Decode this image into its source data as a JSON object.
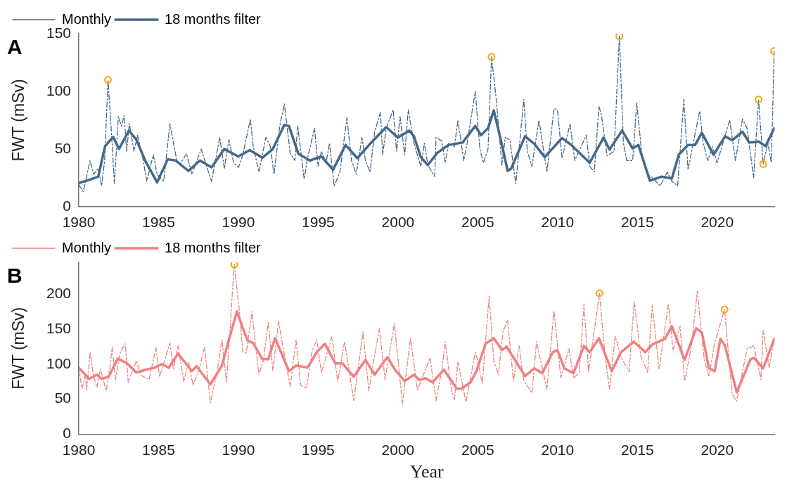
{
  "chart_data": [
    {
      "type": "line",
      "title": "A",
      "ylabel": "FWT (mSv)",
      "xlim": [
        1980,
        2023.6
      ],
      "xticks": [
        1980,
        1985,
        1990,
        1995,
        2000,
        2005,
        2010,
        2015,
        2020
      ],
      "ylim": [
        0,
        150
      ],
      "yticks": [
        0,
        50,
        100,
        150
      ],
      "grid": false,
      "legend": "top left",
      "series": [
        {
          "name": "Monthly",
          "color": "#44688a",
          "line_style": "dashed",
          "marker": "none",
          "x": [
            1980.0,
            1980.28,
            1980.71,
            1980.93,
            1981.22,
            1981.43,
            1981.62,
            1981.83,
            1982.09,
            1982.23,
            1982.48,
            1982.67,
            1982.84,
            1983.0,
            1983.17,
            1983.46,
            1983.68,
            1984.04,
            1984.26,
            1984.67,
            1984.91,
            1985.32,
            1985.71,
            1986.14,
            1986.36,
            1986.75,
            1987.09,
            1987.67,
            1987.96,
            1988.32,
            1988.83,
            1989.12,
            1989.41,
            1989.7,
            1990.01,
            1990.28,
            1990.75,
            1990.93,
            1991.29,
            1991.72,
            1992.01,
            1992.23,
            1992.59,
            1992.88,
            1993.25,
            1993.54,
            1993.72,
            1994.12,
            1994.33,
            1994.77,
            1994.99,
            1995.2,
            1995.49,
            1995.71,
            1996.0,
            1996.36,
            1996.8,
            1997.09,
            1997.38,
            1997.74,
            1997.96,
            1998.25,
            1998.54,
            1998.9,
            1999.04,
            1999.26,
            1999.7,
            1999.91,
            2000.13,
            2000.42,
            2000.64,
            2001.0,
            2001.43,
            2001.65,
            2001.87,
            2002.3,
            2002.38,
            2002.74,
            2002.96,
            2003.17,
            2003.54,
            2003.75,
            2004.12,
            2004.33,
            2004.84,
            2005.13,
            2005.35,
            2005.64,
            2005.86,
            2006.14,
            2006.51,
            2006.72,
            2007.01,
            2007.38,
            2007.88,
            2008.1,
            2008.39,
            2008.83,
            2009.33,
            2009.77,
            2009.99,
            2010.28,
            2010.78,
            2011.07,
            2011.8,
            2012.01,
            2012.3,
            2012.59,
            2012.74,
            2013.1,
            2013.54,
            2013.87,
            2014.12,
            2014.33,
            2014.7,
            2014.96,
            2015.28,
            2015.64,
            2015.93,
            2016.43,
            2016.87,
            2017.16,
            2017.52,
            2017.91,
            2018.17,
            2018.9,
            2019.12,
            2019.41,
            2019.7,
            2019.99,
            2020.78,
            2021.14,
            2021.58,
            2021.87,
            2022.28,
            2022.59,
            2022.88,
            2023.17,
            2023.39,
            2023.57
          ],
          "values": [
            19,
            13,
            40,
            28,
            33,
            18,
            40,
            110,
            55,
            20,
            78,
            70,
            79,
            48,
            72,
            48,
            62,
            40,
            22,
            45,
            28,
            22,
            72,
            40,
            37,
            46,
            28,
            50,
            37,
            22,
            60,
            33,
            58,
            38,
            34,
            45,
            76,
            52,
            30,
            60,
            52,
            28,
            70,
            89,
            46,
            40,
            70,
            24,
            42,
            68,
            35,
            48,
            38,
            55,
            18,
            30,
            77,
            40,
            28,
            60,
            40,
            30,
            65,
            82,
            45,
            68,
            84,
            48,
            78,
            45,
            84,
            55,
            35,
            55,
            36,
            26,
            60,
            57,
            38,
            55,
            52,
            75,
            40,
            55,
            100,
            50,
            38,
            50,
            130,
            95,
            36,
            60,
            58,
            20,
            93,
            48,
            35,
            75,
            30,
            85,
            84,
            42,
            72,
            40,
            62,
            35,
            30,
            87,
            80,
            44,
            48,
            148,
            55,
            40,
            40,
            90,
            45,
            28,
            25,
            18,
            30,
            22,
            18,
            93,
            32,
            83,
            55,
            40,
            52,
            38,
            75,
            40,
            76,
            68,
            25,
            93,
            37,
            55,
            38,
            135
          ]
        },
        {
          "name": "18 months filter",
          "color": "#44688a",
          "line_style": "solid",
          "marker": "none",
          "x": [
            1980.0,
            1980.71,
            1981.22,
            1981.65,
            1982.16,
            1982.52,
            1983.14,
            1983.61,
            1984.19,
            1984.91,
            1985.57,
            1986.07,
            1986.87,
            1987.59,
            1988.32,
            1989.12,
            1989.99,
            1990.71,
            1991.51,
            1992.16,
            1992.88,
            1993.17,
            1993.75,
            1994.48,
            1995.2,
            1995.93,
            1996.72,
            1997.45,
            1998.25,
            1999.26,
            1999.99,
            2000.71,
            2001.0,
            2001.43,
            2001.87,
            2002.45,
            2003.17,
            2004.04,
            2004.84,
            2005.2,
            2005.64,
            2006.0,
            2006.43,
            2006.87,
            2007.09,
            2007.96,
            2008.54,
            2009.19,
            2010.28,
            2010.86,
            2012.01,
            2012.88,
            2013.25,
            2014.04,
            2014.7,
            2015.06,
            2015.78,
            2016.51,
            2017.16,
            2017.59,
            2018.17,
            2018.61,
            2019.04,
            2019.77,
            2020.49,
            2020.93,
            2021.58,
            2022.01,
            2022.59,
            2023.03,
            2023.57
          ],
          "values": [
            20.5,
            23.5,
            26,
            52.5,
            60.5,
            50,
            66,
            58,
            39,
            21,
            41,
            40,
            31,
            40,
            34,
            50,
            43.5,
            49,
            42.5,
            50,
            71,
            70,
            46,
            40,
            43.5,
            32,
            53.5,
            42,
            54.5,
            69,
            60,
            66,
            61,
            43,
            36,
            46.5,
            53.5,
            55.5,
            70,
            62,
            68,
            83.5,
            58.5,
            31,
            33,
            61,
            54.5,
            43,
            59.5,
            53.5,
            38,
            60,
            49.5,
            66,
            50.5,
            53.5,
            22.5,
            26,
            24.5,
            45,
            53.5,
            53.5,
            64,
            45,
            61,
            57.5,
            65,
            55.5,
            56.5,
            52.5,
            68
          ]
        },
        {
          "type": "scatter",
          "color": "#f0a800",
          "marker": "circle",
          "x": [
            1981.83,
            2005.86,
            2013.87,
            2022.59,
            2022.88,
            2023.57
          ],
          "values": [
            110,
            130,
            148,
            93,
            37,
            135
          ]
        }
      ]
    },
    {
      "type": "line",
      "title": "B",
      "xlabel": "Year",
      "ylabel": "FWT (mSv)",
      "xlim": [
        1980,
        2023.6
      ],
      "xticks": [
        1980,
        1985,
        1990,
        1995,
        2000,
        2005,
        2010,
        2015,
        2020
      ],
      "ylim": [
        0,
        245
      ],
      "yticks": [
        0,
        50,
        100,
        150,
        200
      ],
      "grid": false,
      "legend": "top left",
      "series": [
        {
          "name": "Monthly",
          "color": "#f08080",
          "line_style": "dashed",
          "marker": "none",
          "x": [
            1980.0,
            1980.2,
            1980.42,
            1980.49,
            1980.71,
            1980.93,
            1981.14,
            1981.36,
            1981.72,
            1981.94,
            1982.09,
            1982.3,
            1982.59,
            1982.91,
            1983.1,
            1983.61,
            1983.9,
            1984.41,
            1984.84,
            1985.06,
            1985.71,
            1985.93,
            1986.22,
            1986.58,
            1986.87,
            1987.16,
            1987.52,
            1987.88,
            1988.25,
            1988.68,
            1988.97,
            1989.26,
            1989.74,
            1990.06,
            1990.28,
            1990.49,
            1990.86,
            1991.0,
            1991.29,
            1991.58,
            1991.87,
            1992.16,
            1992.52,
            1992.81,
            1993.25,
            1993.61,
            1993.9,
            1994.26,
            1994.62,
            1994.91,
            1995.2,
            1995.86,
            1996.22,
            1996.65,
            1997.23,
            1997.81,
            1998.17,
            1998.83,
            1999.19,
            1999.77,
            2000.28,
            2000.78,
            2001.22,
            2001.58,
            2002.01,
            2002.38,
            2002.74,
            2002.96,
            2003.32,
            2003.54,
            2003.75,
            2004.26,
            2004.84,
            2004.99,
            2005.28,
            2005.71,
            2006.0,
            2006.29,
            2006.58,
            2006.87,
            2007.23,
            2007.59,
            2007.88,
            2008.39,
            2008.68,
            2009.33,
            2009.77,
            2010.2,
            2010.71,
            2011.0,
            2011.36,
            2011.65,
            2011.94,
            2012.62,
            2012.96,
            2013.25,
            2013.61,
            2013.97,
            2014.48,
            2014.8,
            2015.2,
            2015.64,
            2015.93,
            2016.36,
            2016.94,
            2017.23,
            2017.67,
            2017.96,
            2018.39,
            2018.75,
            2019.19,
            2019.48,
            2019.84,
            2020.46,
            2020.93,
            2021.22,
            2021.87,
            2022.3,
            2022.74,
            2022.88,
            2023.25,
            2023.57
          ],
          "values": [
            95,
            65,
            85,
            62,
            117,
            82,
            67,
            93,
            62,
            93,
            124,
            78,
            116,
            129,
            74,
            105,
            84,
            78,
            124,
            82,
            130,
            93,
            127,
            75,
            103,
            70,
            91,
            124,
            45,
            91,
            135,
            74,
            242,
            176,
            117,
            116,
            175,
            142,
            85,
            107,
            160,
            91,
            161,
            122,
            68,
            135,
            70,
            65,
            119,
            135,
            88,
            139,
            75,
            132,
            48,
            146,
            62,
            151,
            78,
            158,
            43,
            137,
            63,
            84,
            109,
            48,
            91,
            132,
            67,
            49,
            104,
            46,
            117,
            105,
            72,
            197,
            105,
            85,
            146,
            163,
            76,
            126,
            76,
            59,
            132,
            64,
            176,
            81,
            122,
            80,
            88,
            186,
            89,
            201,
            114,
            64,
            140,
            110,
            89,
            190,
            112,
            88,
            184,
            93,
            186,
            120,
            154,
            76,
            126,
            204,
            106,
            83,
            130,
            178,
            58,
            47,
            122,
            126,
            78,
            148,
            95,
            136
          ]
        },
        {
          "name": "18 months filter",
          "color": "#f08080",
          "line_style": "solid",
          "marker": "none",
          "x": [
            1980.0,
            1980.64,
            1981.14,
            1981.43,
            1981.87,
            1982.45,
            1983.03,
            1983.61,
            1984.19,
            1984.77,
            1985.2,
            1985.64,
            1986.22,
            1987.09,
            1987.38,
            1988.25,
            1988.97,
            1989.41,
            1989.91,
            1990.28,
            1990.57,
            1990.93,
            1991.51,
            1991.87,
            1992.3,
            1993.17,
            1993.61,
            1994.33,
            1994.91,
            1995.42,
            1996.07,
            1996.51,
            1997.23,
            1997.96,
            1998.54,
            1999.33,
            1999.84,
            2000.42,
            2001.0,
            2001.36,
            2001.72,
            2002.16,
            2002.88,
            2003.68,
            2003.97,
            2004.55,
            2004.91,
            2005.49,
            2006.0,
            2006.51,
            2006.8,
            2007.96,
            2008.54,
            2009.04,
            2009.7,
            2009.99,
            2010.42,
            2011.0,
            2011.65,
            2012.01,
            2012.59,
            2013.39,
            2013.97,
            2014.77,
            2015.49,
            2015.93,
            2016.72,
            2017.16,
            2017.96,
            2018.68,
            2019.04,
            2019.48,
            2019.84,
            2020.2,
            2020.49,
            2021.22,
            2022.09,
            2022.3,
            2022.88,
            2023.57
          ],
          "values": [
            95,
            79,
            85,
            79,
            82,
            108,
            101,
            88,
            92,
            95,
            100,
            95,
            115,
            90,
            97,
            71,
            98,
            135,
            175,
            151,
            134,
            130,
            107,
            107,
            137,
            90,
            98,
            95,
            117,
            129,
            101,
            101,
            82,
            106,
            85,
            110,
            91,
            76,
            85,
            77,
            80,
            74,
            92,
            65,
            65,
            74,
            90,
            129,
            137,
            120,
            125,
            83,
            94,
            87,
            117,
            120,
            94,
            87,
            126,
            117,
            137,
            90,
            117,
            132,
            117,
            128,
            136,
            154,
            106,
            151,
            145,
            94,
            90,
            136,
            126,
            60,
            107,
            109,
            94,
            136
          ]
        },
        {
          "type": "scatter",
          "color": "#f0a800",
          "marker": "circle",
          "x": [
            1989.74,
            2012.62,
            2020.46
          ],
          "values": [
            242,
            201,
            178
          ]
        }
      ]
    }
  ]
}
